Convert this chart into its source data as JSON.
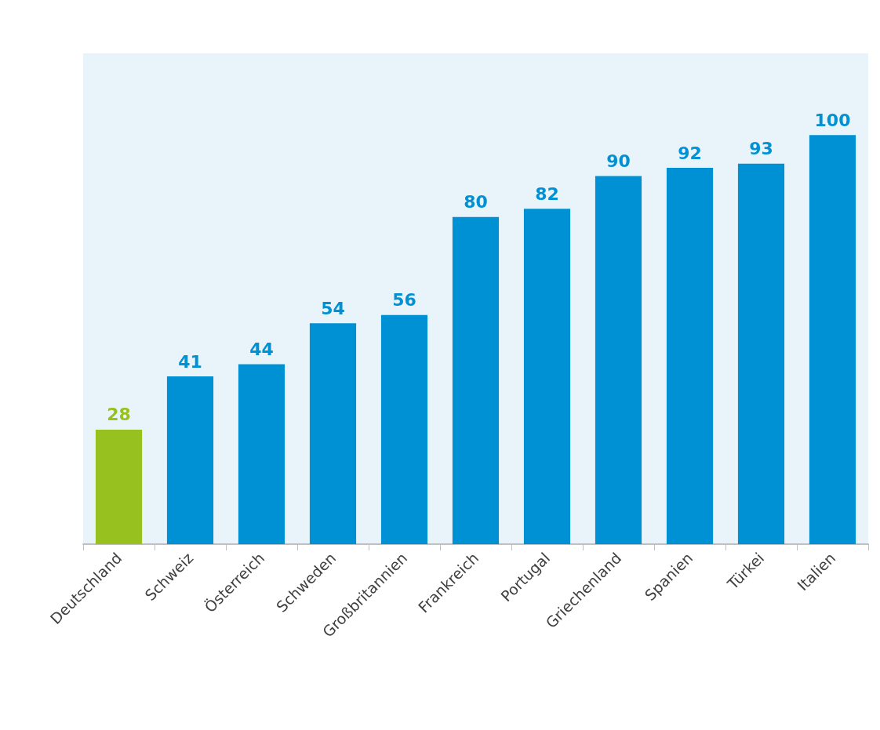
{
  "chart_data": {
    "type": "bar",
    "categories": [
      "Deutschland",
      "Schweiz",
      "Österreich",
      "Schweden",
      "Großbritannien",
      "Frankreich",
      "Portugal",
      "Griechenland",
      "Spanien",
      "Türkei",
      "Italien"
    ],
    "values": [
      28,
      41,
      44,
      54,
      56,
      80,
      82,
      90,
      92,
      93,
      100
    ],
    "colors": [
      "#97c11f",
      "#0091d5",
      "#0091d5",
      "#0091d5",
      "#0091d5",
      "#0091d5",
      "#0091d5",
      "#0091d5",
      "#0091d5",
      "#0091d5",
      "#0091d5"
    ],
    "ylim": [
      0,
      120
    ],
    "data_labels": true
  }
}
